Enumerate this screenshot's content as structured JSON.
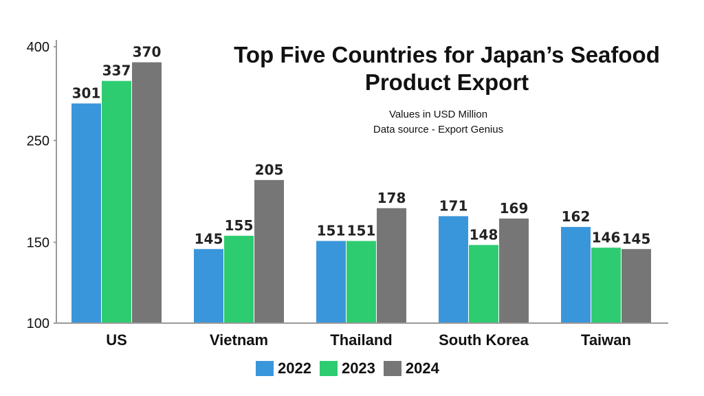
{
  "chart_data": {
    "type": "bar",
    "title": "Top Five Countries for Japan’s Seafood Product Export",
    "subtitle_lines": [
      "Values in USD Million",
      "Data source - Export Genius"
    ],
    "categories": [
      "US",
      "Vietnam",
      "Thailand",
      "South Korea",
      "Taiwan"
    ],
    "series": [
      {
        "name": "2022",
        "color": "#3a96db",
        "values": [
          301,
          145,
          151,
          171,
          162
        ]
      },
      {
        "name": "2023",
        "color": "#2ecc71",
        "values": [
          337,
          155,
          151,
          148,
          146
        ]
      },
      {
        "name": "2024",
        "color": "#767676",
        "values": [
          370,
          205,
          178,
          169,
          145
        ]
      }
    ],
    "y_ticks": [
      100,
      150,
      250,
      400
    ],
    "ylim": [
      100,
      400
    ],
    "y_scale": "log",
    "xlabel": "",
    "ylabel": "",
    "grid": false,
    "legend_position": "bottom"
  }
}
